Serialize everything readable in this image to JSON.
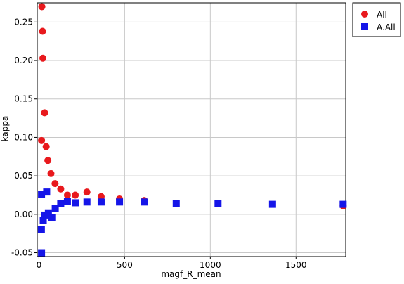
{
  "chart_data": {
    "type": "scatter",
    "xlabel": "magf_R_mean",
    "ylabel": "kappa",
    "xlim": [
      -10,
      1790
    ],
    "ylim": [
      -0.055,
      0.275
    ],
    "x_ticks": [
      0,
      500,
      1000,
      1500
    ],
    "x_tick_labels": [
      "0",
      "500",
      "1000",
      "1500"
    ],
    "y_ticks": [
      -0.05,
      0,
      0.05,
      0.1,
      0.15,
      0.2,
      0.25
    ],
    "y_tick_labels": [
      "-0.05",
      "0.00",
      "0.05",
      "0.10",
      "0.15",
      "0.20",
      "0.25"
    ],
    "grid": true,
    "legend_position": "top-right outside",
    "series": [
      {
        "name": "All",
        "marker": "circle",
        "color": "#e8191d",
        "points": [
          [
            17,
            0.27
          ],
          [
            21,
            0.238
          ],
          [
            23,
            0.203
          ],
          [
            33,
            0.132
          ],
          [
            15,
            0.096
          ],
          [
            42,
            0.088
          ],
          [
            52,
            0.07
          ],
          [
            70,
            0.053
          ],
          [
            94,
            0.04
          ],
          [
            127,
            0.033
          ],
          [
            166,
            0.025
          ],
          [
            212,
            0.025
          ],
          [
            280,
            0.029
          ],
          [
            363,
            0.023
          ],
          [
            470,
            0.02
          ],
          [
            614,
            0.018
          ],
          [
            1775,
            0.011
          ]
        ]
      },
      {
        "name": "A.All",
        "marker": "square",
        "color": "#1515e8",
        "points": [
          [
            15,
            0.026
          ],
          [
            45,
            0.029
          ],
          [
            14,
            -0.02
          ],
          [
            25,
            -0.008
          ],
          [
            35,
            -0.001
          ],
          [
            55,
            0.001
          ],
          [
            75,
            -0.004
          ],
          [
            95,
            0.008
          ],
          [
            127,
            0.014
          ],
          [
            166,
            0.017
          ],
          [
            212,
            0.015
          ],
          [
            280,
            0.016
          ],
          [
            363,
            0.016
          ],
          [
            470,
            0.016
          ],
          [
            614,
            0.016
          ],
          [
            801,
            0.014
          ],
          [
            1045,
            0.014
          ],
          [
            1363,
            0.013
          ],
          [
            1775,
            0.013
          ],
          [
            15,
            -0.05
          ]
        ]
      }
    ]
  }
}
